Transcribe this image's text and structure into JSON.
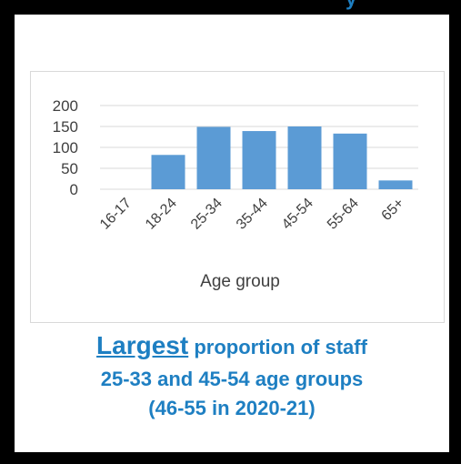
{
  "header": {
    "partial_text": "y"
  },
  "chart_data": {
    "type": "bar",
    "categories": [
      "16-17",
      "18-24",
      "25-34",
      "35-44",
      "45-54",
      "55-64",
      "65+"
    ],
    "values": [
      0,
      82,
      149,
      139,
      150,
      133,
      21
    ],
    "title": "",
    "xlabel": "Age group",
    "ylabel": "",
    "ylim": [
      0,
      200
    ],
    "yticks": [
      0,
      50,
      100,
      150,
      200
    ],
    "grid": true,
    "bar_color": "#5b9bd5"
  },
  "caption": {
    "lead": "Largest",
    "rest": " proportion of staff",
    "line2": "25-33 and 45-54 age groups",
    "line3": "(46-55 in 2020-21)"
  },
  "colors": {
    "accent": "#1e7fc2",
    "frame": "#000000"
  }
}
